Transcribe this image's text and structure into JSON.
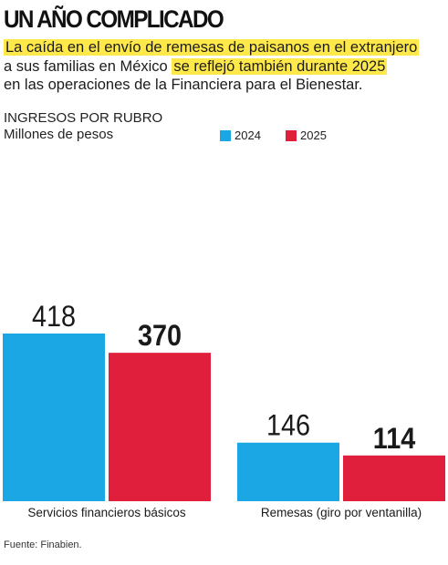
{
  "header": {
    "title": "UN AÑO COMPLICADO",
    "intro_part1": "La caída en el envío de remesas de paisanos en el extranjero",
    "intro_part2": "a sus familias en México",
    "intro_part3": "se reflejó también durante 2025",
    "intro_part4": "en las operaciones de la Financiera para el Bienestar."
  },
  "chart_data": {
    "type": "bar",
    "title": "INGRESOS POR RUBRO",
    "ylabel": "Millones de pesos",
    "categories": [
      "Servicios financieros básicos",
      "Remesas (giro por ventanilla)"
    ],
    "series": [
      {
        "name": "2024",
        "values": [
          418,
          146
        ]
      },
      {
        "name": "2025",
        "values": [
          370,
          114
        ]
      }
    ],
    "ylim": [
      0,
      418
    ],
    "grid": false,
    "legend": "top-right"
  },
  "colors": {
    "y2024": "#1ba7e3",
    "y2025": "#e01f3d",
    "highlight": "#ffe94a"
  },
  "footer": {
    "source": "Fuente: Finabien."
  }
}
